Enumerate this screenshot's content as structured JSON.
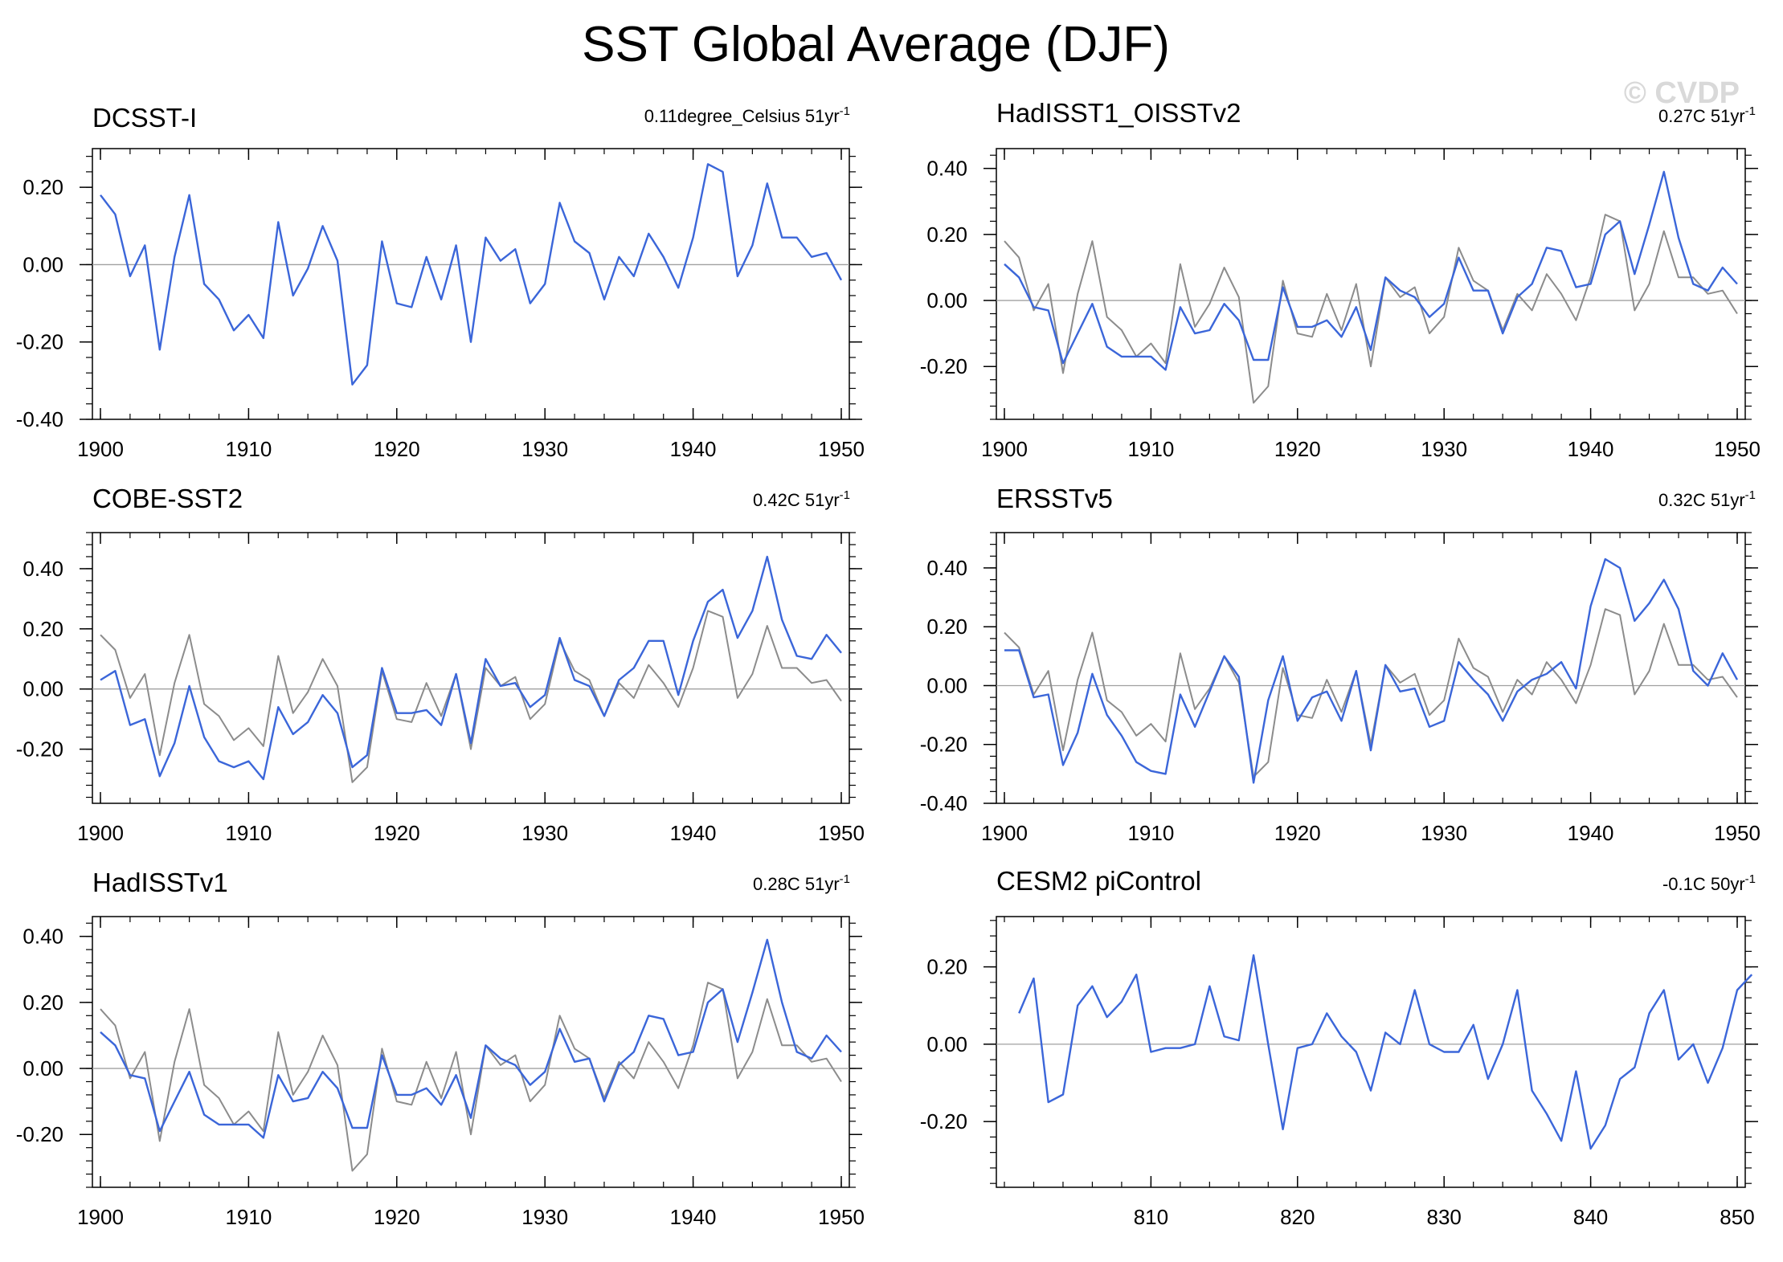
{
  "title": "SST Global Average (DJF)",
  "watermark": "© CVDP",
  "colors": {
    "main": "#3b66d9",
    "reference": "#8c8c8c",
    "zero": "#a0a0a0",
    "axis": "#000000"
  },
  "chart_data": [
    {
      "type": "line",
      "title": "DCSST-I",
      "trend_value": "0.11degree_Celsius 51yr",
      "trend_sup": "-1",
      "x_start": 1900,
      "xlim": [
        1900,
        1950
      ],
      "xticks": [
        1900,
        1910,
        1920,
        1930,
        1940,
        1950
      ],
      "xtick_labels": [
        "1900",
        "1910",
        "1920",
        "1930",
        "1940",
        "1950"
      ],
      "ylim": [
        -0.4,
        0.3
      ],
      "yticks": [
        -0.4,
        -0.2,
        0.0,
        0.2
      ],
      "ytick_labels": [
        "-0.40",
        "-0.20",
        "0.00",
        "0.20"
      ],
      "series": [
        {
          "name": "DCSST-I",
          "role": "main",
          "values": [
            0.18,
            0.13,
            -0.03,
            0.05,
            -0.22,
            0.02,
            0.18,
            -0.05,
            -0.09,
            -0.17,
            -0.13,
            -0.19,
            0.11,
            -0.08,
            -0.01,
            0.1,
            0.01,
            -0.31,
            -0.26,
            0.06,
            -0.1,
            -0.11,
            0.02,
            -0.09,
            0.05,
            -0.2,
            0.07,
            0.01,
            0.04,
            -0.1,
            -0.05,
            0.16,
            0.06,
            0.03,
            -0.09,
            0.02,
            -0.03,
            0.08,
            0.02,
            -0.06,
            0.07,
            0.26,
            0.24,
            -0.03,
            0.05,
            0.21,
            0.07,
            0.07,
            0.02,
            0.03,
            -0.04
          ]
        }
      ]
    },
    {
      "type": "line",
      "title": "HadISST1_OISSTv2",
      "trend_value": "0.27C 51yr",
      "trend_sup": "-1",
      "x_start": 1900,
      "xlim": [
        1900,
        1950
      ],
      "xticks": [
        1900,
        1910,
        1920,
        1930,
        1940,
        1950
      ],
      "xtick_labels": [
        "1900",
        "1910",
        "1920",
        "1930",
        "1940",
        "1950"
      ],
      "ylim": [
        -0.36,
        0.46
      ],
      "yticks": [
        -0.2,
        0.0,
        0.2,
        0.4
      ],
      "ytick_labels": [
        "-0.20",
        "0.00",
        "0.20",
        "0.40"
      ],
      "series": [
        {
          "name": "DCSST-I",
          "role": "reference",
          "values": [
            0.18,
            0.13,
            -0.03,
            0.05,
            -0.22,
            0.02,
            0.18,
            -0.05,
            -0.09,
            -0.17,
            -0.13,
            -0.19,
            0.11,
            -0.08,
            -0.01,
            0.1,
            0.01,
            -0.31,
            -0.26,
            0.06,
            -0.1,
            -0.11,
            0.02,
            -0.09,
            0.05,
            -0.2,
            0.07,
            0.01,
            0.04,
            -0.1,
            -0.05,
            0.16,
            0.06,
            0.03,
            -0.09,
            0.02,
            -0.03,
            0.08,
            0.02,
            -0.06,
            0.07,
            0.26,
            0.24,
            -0.03,
            0.05,
            0.21,
            0.07,
            0.07,
            0.02,
            0.03,
            -0.04
          ]
        },
        {
          "name": "HadISST1_OISSTv2",
          "role": "main",
          "values": [
            0.11,
            0.07,
            -0.02,
            -0.03,
            -0.19,
            -0.1,
            -0.01,
            -0.14,
            -0.17,
            -0.17,
            -0.17,
            -0.21,
            -0.02,
            -0.1,
            -0.09,
            -0.01,
            -0.06,
            -0.18,
            -0.18,
            0.04,
            -0.08,
            -0.08,
            -0.06,
            -0.11,
            -0.02,
            -0.15,
            0.07,
            0.03,
            0.01,
            -0.05,
            -0.01,
            0.13,
            0.03,
            0.03,
            -0.1,
            0.01,
            0.05,
            0.16,
            0.15,
            0.04,
            0.05,
            0.2,
            0.24,
            0.08,
            0.23,
            0.39,
            0.19,
            0.05,
            0.03,
            0.1,
            0.05
          ]
        }
      ]
    },
    {
      "type": "line",
      "title": "COBE-SST2",
      "trend_value": "0.42C 51yr",
      "trend_sup": "-1",
      "x_start": 1900,
      "xlim": [
        1900,
        1950
      ],
      "xticks": [
        1900,
        1910,
        1920,
        1930,
        1940,
        1950
      ],
      "xtick_labels": [
        "1900",
        "1910",
        "1920",
        "1930",
        "1940",
        "1950"
      ],
      "ylim": [
        -0.38,
        0.52
      ],
      "yticks": [
        -0.2,
        0.0,
        0.2,
        0.4
      ],
      "ytick_labels": [
        "-0.20",
        "0.00",
        "0.20",
        "0.40"
      ],
      "series": [
        {
          "name": "DCSST-I",
          "role": "reference",
          "values": [
            0.18,
            0.13,
            -0.03,
            0.05,
            -0.22,
            0.02,
            0.18,
            -0.05,
            -0.09,
            -0.17,
            -0.13,
            -0.19,
            0.11,
            -0.08,
            -0.01,
            0.1,
            0.01,
            -0.31,
            -0.26,
            0.06,
            -0.1,
            -0.11,
            0.02,
            -0.09,
            0.05,
            -0.2,
            0.07,
            0.01,
            0.04,
            -0.1,
            -0.05,
            0.16,
            0.06,
            0.03,
            -0.09,
            0.02,
            -0.03,
            0.08,
            0.02,
            -0.06,
            0.07,
            0.26,
            0.24,
            -0.03,
            0.05,
            0.21,
            0.07,
            0.07,
            0.02,
            0.03,
            -0.04
          ]
        },
        {
          "name": "COBE-SST2",
          "role": "main",
          "values": [
            0.03,
            0.06,
            -0.12,
            -0.1,
            -0.29,
            -0.18,
            0.01,
            -0.16,
            -0.24,
            -0.26,
            -0.24,
            -0.3,
            -0.06,
            -0.15,
            -0.11,
            -0.02,
            -0.08,
            -0.26,
            -0.22,
            0.07,
            -0.08,
            -0.08,
            -0.07,
            -0.12,
            0.05,
            -0.18,
            0.1,
            0.01,
            0.02,
            -0.06,
            -0.02,
            0.17,
            0.03,
            0.01,
            -0.09,
            0.03,
            0.07,
            0.16,
            0.16,
            -0.02,
            0.16,
            0.29,
            0.33,
            0.17,
            0.26,
            0.44,
            0.23,
            0.11,
            0.1,
            0.18,
            0.12
          ]
        }
      ]
    },
    {
      "type": "line",
      "title": "ERSSTv5",
      "trend_value": "0.32C 51yr",
      "trend_sup": "-1",
      "x_start": 1900,
      "xlim": [
        1900,
        1950
      ],
      "xticks": [
        1900,
        1910,
        1920,
        1930,
        1940,
        1950
      ],
      "xtick_labels": [
        "1900",
        "1910",
        "1920",
        "1930",
        "1940",
        "1950"
      ],
      "ylim": [
        -0.4,
        0.52
      ],
      "yticks": [
        -0.4,
        -0.2,
        0.0,
        0.2,
        0.4
      ],
      "ytick_labels": [
        "-0.40",
        "-0.20",
        "0.00",
        "0.20",
        "0.40"
      ],
      "series": [
        {
          "name": "DCSST-I",
          "role": "reference",
          "values": [
            0.18,
            0.13,
            -0.03,
            0.05,
            -0.22,
            0.02,
            0.18,
            -0.05,
            -0.09,
            -0.17,
            -0.13,
            -0.19,
            0.11,
            -0.08,
            -0.01,
            0.1,
            0.01,
            -0.31,
            -0.26,
            0.06,
            -0.1,
            -0.11,
            0.02,
            -0.09,
            0.05,
            -0.2,
            0.07,
            0.01,
            0.04,
            -0.1,
            -0.05,
            0.16,
            0.06,
            0.03,
            -0.09,
            0.02,
            -0.03,
            0.08,
            0.02,
            -0.06,
            0.07,
            0.26,
            0.24,
            -0.03,
            0.05,
            0.21,
            0.07,
            0.07,
            0.02,
            0.03,
            -0.04
          ]
        },
        {
          "name": "ERSSTv5",
          "role": "main",
          "values": [
            0.12,
            0.12,
            -0.04,
            -0.03,
            -0.27,
            -0.16,
            0.04,
            -0.1,
            -0.17,
            -0.26,
            -0.29,
            -0.3,
            -0.03,
            -0.14,
            -0.02,
            0.1,
            0.03,
            -0.33,
            -0.05,
            0.1,
            -0.12,
            -0.04,
            -0.02,
            -0.12,
            0.05,
            -0.22,
            0.07,
            -0.02,
            -0.01,
            -0.14,
            -0.12,
            0.08,
            0.02,
            -0.03,
            -0.12,
            -0.02,
            0.02,
            0.04,
            0.08,
            -0.01,
            0.27,
            0.43,
            0.4,
            0.22,
            0.28,
            0.36,
            0.26,
            0.05,
            0.0,
            0.11,
            0.02
          ]
        }
      ]
    },
    {
      "type": "line",
      "title": "HadISSTv1",
      "trend_value": "0.28C 51yr",
      "trend_sup": "-1",
      "x_start": 1900,
      "xlim": [
        1900,
        1950
      ],
      "xticks": [
        1900,
        1910,
        1920,
        1930,
        1940,
        1950
      ],
      "xtick_labels": [
        "1900",
        "1910",
        "1920",
        "1930",
        "1940",
        "1950"
      ],
      "ylim": [
        -0.36,
        0.46
      ],
      "yticks": [
        -0.2,
        0.0,
        0.2,
        0.4
      ],
      "ytick_labels": [
        "-0.20",
        "0.00",
        "0.20",
        "0.40"
      ],
      "series": [
        {
          "name": "DCSST-I",
          "role": "reference",
          "values": [
            0.18,
            0.13,
            -0.03,
            0.05,
            -0.22,
            0.02,
            0.18,
            -0.05,
            -0.09,
            -0.17,
            -0.13,
            -0.19,
            0.11,
            -0.08,
            -0.01,
            0.1,
            0.01,
            -0.31,
            -0.26,
            0.06,
            -0.1,
            -0.11,
            0.02,
            -0.09,
            0.05,
            -0.2,
            0.07,
            0.01,
            0.04,
            -0.1,
            -0.05,
            0.16,
            0.06,
            0.03,
            -0.09,
            0.02,
            -0.03,
            0.08,
            0.02,
            -0.06,
            0.07,
            0.26,
            0.24,
            -0.03,
            0.05,
            0.21,
            0.07,
            0.07,
            0.02,
            0.03,
            -0.04
          ]
        },
        {
          "name": "HadISSTv1",
          "role": "main",
          "values": [
            0.11,
            0.07,
            -0.02,
            -0.03,
            -0.19,
            -0.1,
            -0.01,
            -0.14,
            -0.17,
            -0.17,
            -0.17,
            -0.21,
            -0.02,
            -0.1,
            -0.09,
            -0.01,
            -0.06,
            -0.18,
            -0.18,
            0.04,
            -0.08,
            -0.08,
            -0.06,
            -0.11,
            -0.02,
            -0.15,
            0.07,
            0.03,
            0.01,
            -0.05,
            -0.01,
            0.12,
            0.02,
            0.03,
            -0.1,
            0.01,
            0.05,
            0.16,
            0.15,
            0.04,
            0.05,
            0.2,
            0.24,
            0.08,
            0.23,
            0.39,
            0.2,
            0.05,
            0.03,
            0.1,
            0.05
          ]
        }
      ]
    },
    {
      "type": "line",
      "title": "CESM2 piControl",
      "trend_value": "-0.1C 50yr",
      "trend_sup": "-1",
      "x_start": 801,
      "xlim": [
        800,
        850
      ],
      "xticks": [
        810,
        820,
        830,
        840,
        850
      ],
      "xtick_labels": [
        "810",
        "820",
        "830",
        "840",
        "850"
      ],
      "ylim": [
        -0.37,
        0.33
      ],
      "yticks": [
        -0.2,
        0.0,
        0.2
      ],
      "ytick_labels": [
        "-0.20",
        "0.00",
        "0.20"
      ],
      "series": [
        {
          "name": "CESM2 piControl",
          "role": "main",
          "values": [
            0.08,
            0.17,
            -0.15,
            -0.13,
            0.1,
            0.15,
            0.07,
            0.11,
            0.18,
            -0.02,
            -0.01,
            -0.01,
            0.0,
            0.15,
            0.02,
            0.01,
            0.23,
            0.0,
            -0.22,
            -0.01,
            0.0,
            0.08,
            0.02,
            -0.02,
            -0.12,
            0.03,
            0.0,
            0.14,
            0.0,
            -0.02,
            -0.02,
            0.05,
            -0.09,
            0.0,
            0.14,
            -0.12,
            -0.18,
            -0.25,
            -0.07,
            -0.27,
            -0.21,
            -0.09,
            -0.06,
            0.08,
            0.14,
            -0.04,
            0.0,
            -0.1,
            -0.01,
            0.14,
            0.18
          ]
        }
      ]
    }
  ]
}
